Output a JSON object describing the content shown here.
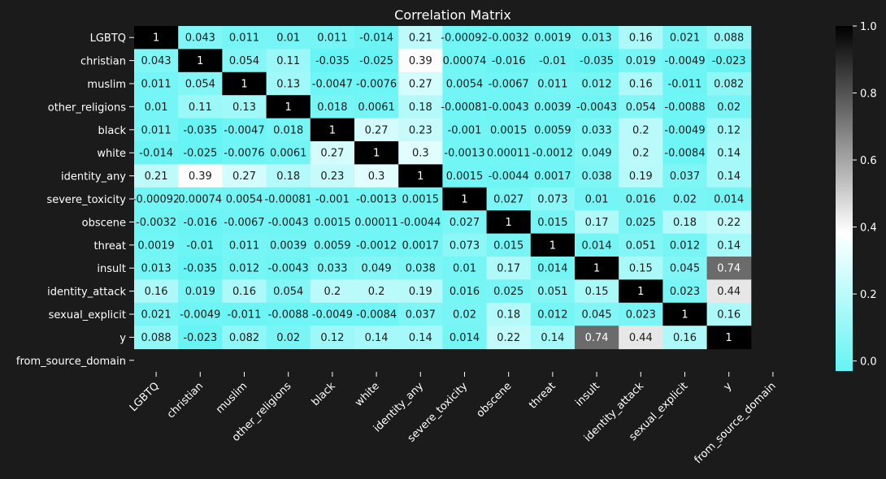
{
  "chart_data": {
    "type": "heatmap",
    "title": "Correlation Matrix",
    "labels": [
      "LGBTQ",
      "christian",
      "muslim",
      "other_religions",
      "black",
      "white",
      "identity_any",
      "severe_toxicity",
      "obscene",
      "threat",
      "insult",
      "identity_attack",
      "sexual_explicit",
      "y",
      "from_source_domain"
    ],
    "values": [
      [
        1,
        0.043,
        0.011,
        0.01,
        0.011,
        -0.014,
        0.21,
        -0.00092,
        -0.0032,
        0.0019,
        0.013,
        0.16,
        0.021,
        0.088,
        null
      ],
      [
        0.043,
        1,
        0.054,
        0.11,
        -0.035,
        -0.025,
        0.39,
        0.00074,
        -0.016,
        -0.01,
        -0.035,
        0.019,
        -0.0049,
        -0.023,
        null
      ],
      [
        0.011,
        0.054,
        1,
        0.13,
        -0.0047,
        -0.0076,
        0.27,
        0.0054,
        -0.0067,
        0.011,
        0.012,
        0.16,
        -0.011,
        0.082,
        null
      ],
      [
        0.01,
        0.11,
        0.13,
        1,
        0.018,
        0.0061,
        0.18,
        -0.00081,
        -0.0043,
        0.0039,
        -0.0043,
        0.054,
        -0.0088,
        0.02,
        null
      ],
      [
        0.011,
        -0.035,
        -0.0047,
        0.018,
        1,
        0.27,
        0.23,
        -0.001,
        0.0015,
        0.0059,
        0.033,
        0.2,
        -0.0049,
        0.12,
        null
      ],
      [
        -0.014,
        -0.025,
        -0.0076,
        0.0061,
        0.27,
        1,
        0.3,
        -0.0013,
        0.00011,
        -0.0012,
        0.049,
        0.2,
        -0.0084,
        0.14,
        null
      ],
      [
        0.21,
        0.39,
        0.27,
        0.18,
        0.23,
        0.3,
        1,
        0.0015,
        -0.0044,
        0.0017,
        0.038,
        0.19,
        0.037,
        0.14,
        null
      ],
      [
        -0.00092,
        0.00074,
        0.0054,
        -0.00081,
        -0.001,
        -0.0013,
        0.0015,
        1,
        0.027,
        0.073,
        0.01,
        0.016,
        0.02,
        0.014,
        null
      ],
      [
        -0.0032,
        -0.016,
        -0.0067,
        -0.0043,
        0.0015,
        0.00011,
        -0.0044,
        0.027,
        1,
        0.015,
        0.17,
        0.025,
        0.18,
        0.22,
        null
      ],
      [
        0.0019,
        -0.01,
        0.011,
        0.0039,
        0.0059,
        -0.0012,
        0.0017,
        0.073,
        0.015,
        1,
        0.014,
        0.051,
        0.012,
        0.14,
        null
      ],
      [
        0.013,
        -0.035,
        0.012,
        -0.0043,
        0.033,
        0.049,
        0.038,
        0.01,
        0.17,
        0.014,
        1,
        0.15,
        0.045,
        0.74,
        null
      ],
      [
        0.16,
        0.019,
        0.16,
        0.054,
        0.2,
        0.2,
        0.19,
        0.016,
        0.025,
        0.051,
        0.15,
        1,
        0.023,
        0.44,
        null
      ],
      [
        0.021,
        -0.0049,
        -0.011,
        -0.0088,
        -0.0049,
        -0.0084,
        0.037,
        0.02,
        0.18,
        0.012,
        0.045,
        0.023,
        1,
        0.16,
        null
      ],
      [
        0.088,
        -0.023,
        0.082,
        0.02,
        0.12,
        0.14,
        0.14,
        0.014,
        0.22,
        0.14,
        0.74,
        0.44,
        0.16,
        1,
        null
      ],
      [
        null,
        null,
        null,
        null,
        null,
        null,
        null,
        null,
        null,
        null,
        null,
        null,
        null,
        null,
        null
      ]
    ],
    "value_labels": [
      [
        "1",
        "0.043",
        "0.011",
        "0.01",
        "0.011",
        "-0.014",
        "0.21",
        "-0.00092",
        "-0.0032",
        "0.0019",
        "0.013",
        "0.16",
        "0.021",
        "0.088",
        ""
      ],
      [
        "0.043",
        "1",
        "0.054",
        "0.11",
        "-0.035",
        "-0.025",
        "0.39",
        "0.00074",
        "-0.016",
        "-0.01",
        "-0.035",
        "0.019",
        "-0.0049",
        "-0.023",
        ""
      ],
      [
        "0.011",
        "0.054",
        "1",
        "0.13",
        "-0.0047",
        "-0.0076",
        "0.27",
        "0.0054",
        "-0.0067",
        "0.011",
        "0.012",
        "0.16",
        "-0.011",
        "0.082",
        ""
      ],
      [
        "0.01",
        "0.11",
        "0.13",
        "1",
        "0.018",
        "0.0061",
        "0.18",
        "-0.00081",
        "-0.0043",
        "0.0039",
        "-0.0043",
        "0.054",
        "-0.0088",
        "0.02",
        ""
      ],
      [
        "0.011",
        "-0.035",
        "-0.0047",
        "0.018",
        "1",
        "0.27",
        "0.23",
        "-0.001",
        "0.0015",
        "0.0059",
        "0.033",
        "0.2",
        "-0.0049",
        "0.12",
        ""
      ],
      [
        "-0.014",
        "-0.025",
        "-0.0076",
        "0.0061",
        "0.27",
        "1",
        "0.3",
        "-0.0013",
        "0.00011",
        "-0.0012",
        "0.049",
        "0.2",
        "-0.0084",
        "0.14",
        ""
      ],
      [
        "0.21",
        "0.39",
        "0.27",
        "0.18",
        "0.23",
        "0.3",
        "1",
        "0.0015",
        "-0.0044",
        "0.0017",
        "0.038",
        "0.19",
        "0.037",
        "0.14",
        ""
      ],
      [
        "-0.00092",
        "0.00074",
        "0.0054",
        "-0.00081",
        "-0.001",
        "-0.0013",
        "0.0015",
        "1",
        "0.027",
        "0.073",
        "0.01",
        "0.016",
        "0.02",
        "0.014",
        ""
      ],
      [
        "-0.0032",
        "-0.016",
        "-0.0067",
        "-0.0043",
        "0.0015",
        "0.00011",
        "-0.0044",
        "0.027",
        "1",
        "0.015",
        "0.17",
        "0.025",
        "0.18",
        "0.22",
        ""
      ],
      [
        "0.0019",
        "-0.01",
        "0.011",
        "0.0039",
        "0.0059",
        "-0.0012",
        "0.0017",
        "0.073",
        "0.015",
        "1",
        "0.014",
        "0.051",
        "0.012",
        "0.14",
        ""
      ],
      [
        "0.013",
        "-0.035",
        "0.012",
        "-0.0043",
        "0.033",
        "0.049",
        "0.038",
        "0.01",
        "0.17",
        "0.014",
        "1",
        "0.15",
        "0.045",
        "0.74",
        ""
      ],
      [
        "0.16",
        "0.019",
        "0.16",
        "0.054",
        "0.2",
        "0.2",
        "0.19",
        "0.016",
        "0.025",
        "0.051",
        "0.15",
        "1",
        "0.023",
        "0.44",
        ""
      ],
      [
        "0.021",
        "-0.0049",
        "-0.011",
        "-0.0088",
        "-0.0049",
        "-0.0084",
        "0.037",
        "0.02",
        "0.18",
        "0.012",
        "0.045",
        "0.023",
        "1",
        "0.16",
        ""
      ],
      [
        "0.088",
        "-0.023",
        "0.082",
        "0.02",
        "0.12",
        "0.14",
        "0.14",
        "0.014",
        "0.22",
        "0.14",
        "0.74",
        "0.44",
        "0.16",
        "1",
        ""
      ],
      [
        "",
        "",
        "",
        "",
        "",
        "",
        "",
        "",
        "",
        "",
        "",
        "",
        "",
        "",
        ""
      ]
    ],
    "colorbar": {
      "min": -0.03,
      "max": 1,
      "ticks": [
        0.0,
        0.2,
        0.4,
        0.6,
        0.8,
        1.0
      ],
      "tick_labels": [
        "0.0",
        "0.2",
        "0.4",
        "0.6",
        "0.8",
        "1.0"
      ]
    },
    "colors": {
      "background": "#1b1b1b",
      "low": "#66f4f4",
      "mid": "#ffffff",
      "high": "#000000",
      "text_light": "#ffffff",
      "text_dark": "#1b1b1b"
    }
  }
}
